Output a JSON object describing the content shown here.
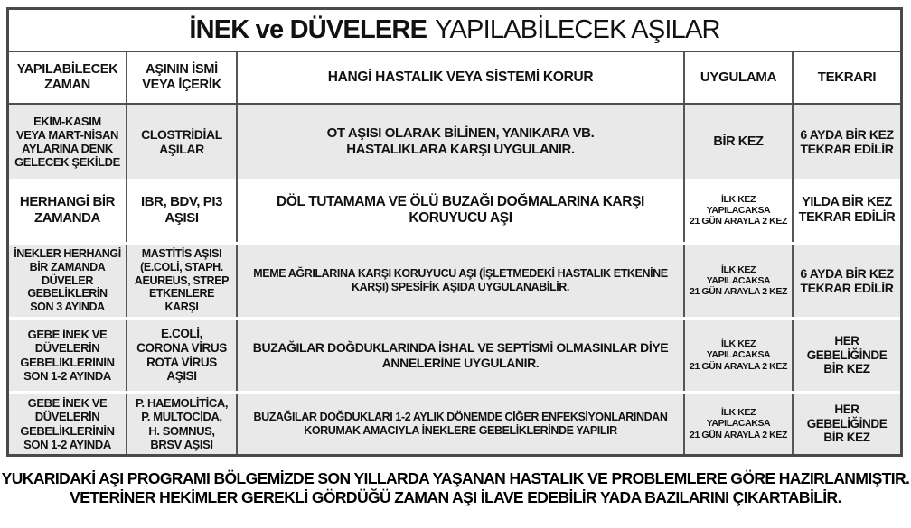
{
  "title": {
    "bold_part": "İNEK ve DÜVELERE",
    "regular_part": "YAPILABİLECEK AŞILAR"
  },
  "table": {
    "headers": [
      "YAPILABİLECEK\nZAMAN",
      "AŞININ İSMİ\nVEYA İÇERİK",
      "HANGİ HASTALIK VEYA SİSTEMİ KORUR",
      "UYGULAMA",
      "TEKRARI"
    ],
    "rows": [
      {
        "zaman": "EKİM-KASIM\nVEYA MART-NİSAN\nAYLARINA DENK\nGELECEK ŞEKİLDE",
        "asi": "CLOSTRİDİAL\nAŞILAR",
        "korur": "OT AŞISI OLARAK BİLİNEN, YANIKARA VB.\nHASTALIKLARA KARŞI UYGULANIR.",
        "uygulama": "BİR KEZ",
        "tekrari": "6 AYDA BİR KEZ\nTEKRAR EDİLİR"
      },
      {
        "zaman": "HERHANGİ BİR\nZAMANDA",
        "asi": "IBR, BDV, PI3\nAŞISI",
        "korur": "DÖL TUTAMAMA VE ÖLÜ BUZAĞI DOĞMALARINA KARŞI\nKORUYUCU AŞI",
        "uygulama": "İLK KEZ YAPILACAKSA\n21 GÜN ARAYLA 2 KEZ",
        "tekrari": "YILDA BİR KEZ\nTEKRAR EDİLİR"
      },
      {
        "zaman": "İNEKLER HERHANGİ\nBİR ZAMANDA\nDÜVELER\nGEBELİKLERİN\nSON 3 AYINDA",
        "asi": "MASTİTİS AŞISI\n(E.COLİ, STAPH.\nAEUREUS, STREP\nETKENLERE KARŞI",
        "korur": "MEME AĞRILARINA KARŞI KORUYUCU AŞI (İŞLETMEDEKİ HASTALIK ETKENİNE\nKARŞI) SPESİFİK AŞIDA UYGULANABİLİR.",
        "uygulama": "İLK KEZ YAPILACAKSA\n21 GÜN ARAYLA 2 KEZ",
        "tekrari": "6 AYDA BİR KEZ\nTEKRAR EDİLİR"
      },
      {
        "zaman": "GEBE İNEK VE\nDÜVELERİN\nGEBELİKLERİNİN\nSON 1-2 AYINDA",
        "asi": "E.COLİ,\nCORONA VİRUS\nROTA VİRUS\nAŞISI",
        "korur": "BUZAĞILAR DOĞDUKLARINDA İSHAL VE SEPTİSMİ OLMASINLAR DİYE\nANNELERİNE UYGULANIR.",
        "uygulama": "İLK KEZ YAPILACAKSA\n21 GÜN ARAYLA 2 KEZ",
        "tekrari": "HER GEBELİĞİNDE\nBİR KEZ"
      },
      {
        "zaman": "GEBE İNEK VE\nDÜVELERİN\nGEBELİKLERİNİN\nSON 1-2 AYINDA",
        "asi": "P. HAEMOLİTİCA,\nP. MULTOCİDA,\nH. SOMNUS,\nBRSV AŞISI",
        "korur": "BUZAĞILAR DOĞDUKLARI 1-2 AYLIK DÖNEMDE CİĞER ENFEKSİYONLARINDAN\nKORUMAK AMACIYLA İNEKLERE GEBELİKLERİNDE YAPILIR",
        "uygulama": "İLK KEZ YAPILACAKSA\n21 GÜN ARAYLA 2 KEZ",
        "tekrari": "HER GEBELİĞİNDE\nBİR KEZ"
      }
    ]
  },
  "footer": {
    "text": "YUKARIDAKİ AŞI PROGRAMI BÖLGEMİZDE SON YILLARDA YAŞANAN HASTALIK VE PROBLEMLERE GÖRE HAZIRLANMIŞTIR.\nVETERİNER HEKİMLER GEREKLİ GÖRDÜĞÜ ZAMAN AŞI İLAVE EDEBİLİR YADA BAZILARINI ÇIKARTABİLİR."
  },
  "colors": {
    "shaded_row": "#e9e9e9",
    "plain_row": "#ffffff",
    "outer_border": "#4a4a4a",
    "inner_border": "#565656",
    "text": "#111111"
  }
}
